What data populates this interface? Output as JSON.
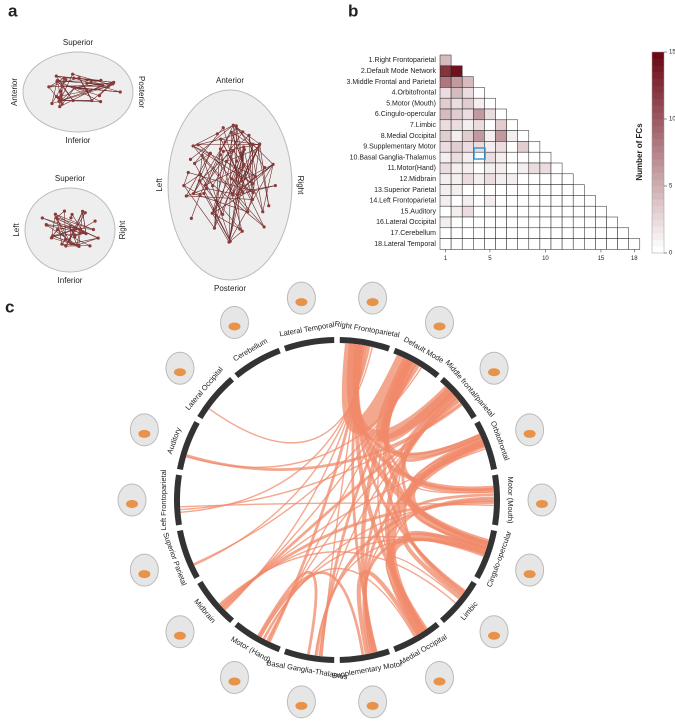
{
  "panels": [
    "a",
    "b",
    "c"
  ],
  "panel_a": {
    "views": [
      {
        "top": "Superior",
        "left": "Anterior",
        "right": "Posterior",
        "bottom": "Inferior"
      },
      {
        "top": "Superior",
        "left": "Left",
        "right": "Right",
        "bottom": "Inferior"
      },
      {
        "top": "Anterior",
        "left": "Left",
        "right": "Right",
        "bottom": "Posterior"
      }
    ]
  },
  "chart_data": [
    {
      "type": "heatmap",
      "colorbar_label": "Number of FCs",
      "clim": [
        0,
        15
      ],
      "cticks": [
        0,
        5,
        10,
        15
      ],
      "xticks": [
        1,
        5,
        10,
        15,
        18
      ],
      "color": "#67000d",
      "rows": [
        "1.Right Frontoparietal",
        "2.Default Mode Network",
        "3.Middle Frontal and Parietal",
        "4.Orbitofrontal",
        "5.Motor (Mouth)",
        "6.Cingulo-opercular",
        "7.Limbic",
        "8.Medial Occipital",
        "9.Supplementary Motor",
        "10.Basal Ganglia-Thalamus",
        "11.Motor(Hand)",
        "12.Midbrain",
        "13.Superior Parietal",
        "14.Left Frontoparietal",
        "15.Auditory",
        "16.Lateral Occipital",
        "17.Cerebellum",
        "18.Lateral Temporal"
      ],
      "matrix": [
        [
          4
        ],
        [
          12,
          14
        ],
        [
          8,
          6,
          4
        ],
        [
          2,
          4,
          2,
          0
        ],
        [
          3,
          2,
          3,
          1,
          0
        ],
        [
          4,
          3,
          2,
          6,
          2,
          0
        ],
        [
          2,
          2,
          1,
          2,
          0,
          3,
          0
        ],
        [
          3,
          1,
          3,
          6,
          1,
          6,
          1,
          0
        ],
        [
          2,
          3,
          2,
          2,
          1,
          2,
          0,
          3,
          0
        ],
        [
          1,
          2,
          1,
          0,
          2,
          1,
          0,
          0,
          0,
          0
        ],
        [
          2,
          1,
          1,
          0,
          1,
          1,
          0,
          1,
          2,
          2,
          0
        ],
        [
          1,
          1,
          2,
          1,
          2,
          1,
          1,
          0,
          0,
          0,
          0,
          0
        ],
        [
          1,
          1,
          0,
          0,
          0,
          0,
          0,
          0,
          0,
          0,
          0,
          0,
          0
        ],
        [
          1,
          0,
          1,
          0,
          1,
          0,
          0,
          0,
          0,
          0,
          0,
          0,
          0,
          0
        ],
        [
          0,
          1,
          2,
          0,
          0,
          0,
          0,
          0,
          0,
          0,
          0,
          0,
          0,
          0,
          0
        ],
        [
          1,
          0,
          0,
          0,
          0,
          0,
          0,
          0,
          0,
          0,
          0,
          0,
          0,
          0,
          0,
          0
        ],
        [
          0,
          0,
          0,
          0,
          0,
          0,
          0,
          0,
          0,
          0,
          0,
          0,
          0,
          0,
          0,
          0,
          0
        ],
        [
          0,
          0,
          0,
          0,
          0,
          0,
          0,
          0,
          0,
          0,
          0,
          0,
          0,
          0,
          0,
          0,
          0,
          0
        ]
      ]
    },
    {
      "type": "chord",
      "color": "#f08a6a",
      "arc_color": "#333333",
      "categories": [
        "Right Frontoparietal",
        "Default Mode",
        "Middle frontal/parietal",
        "Orbitofrontal",
        "Motor (Mouth)",
        "Cingulo-opercular",
        "Limbic",
        "Medial Occipital",
        "Supplementary Motor",
        "Basal Ganglia-Thalamus",
        "Motor (Hand)",
        "Midbrain",
        "Superior Parietal",
        "Left Frontoparietal",
        "Auditory",
        "Lateral Occipital",
        "Cerebellum",
        "Lateral Temporal"
      ]
    }
  ]
}
